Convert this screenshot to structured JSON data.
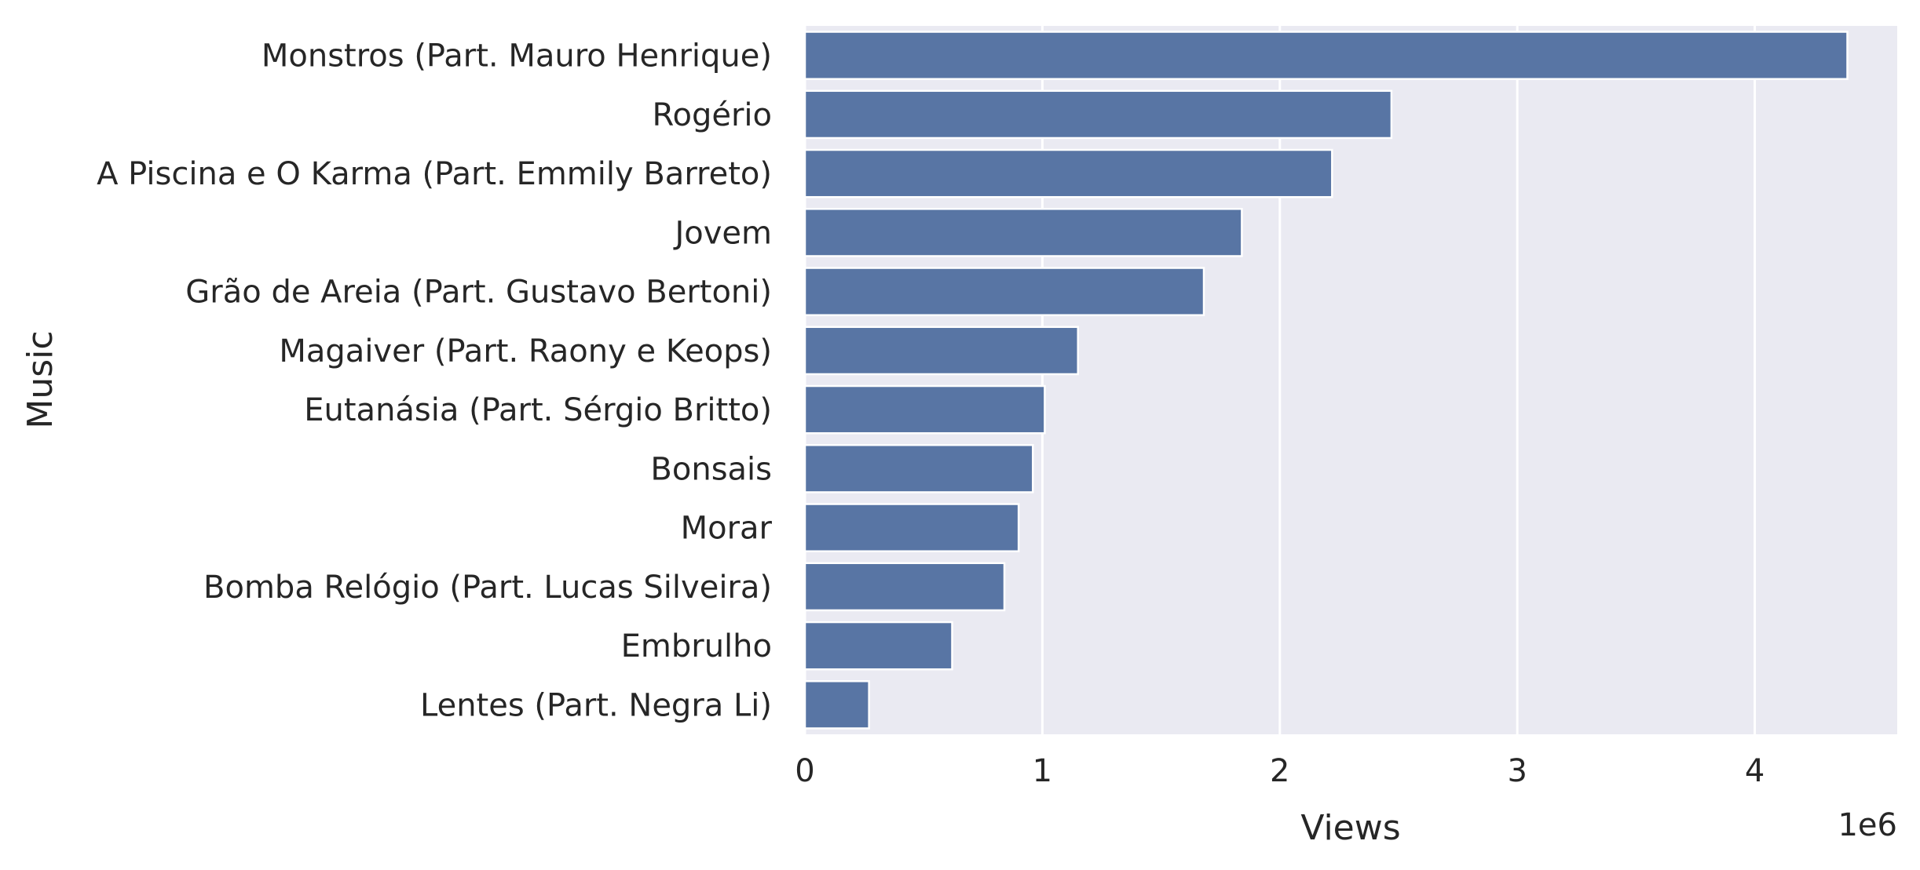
{
  "chart_data": {
    "type": "bar",
    "orientation": "horizontal",
    "title": "",
    "xlabel": "Views",
    "ylabel": "Music",
    "x_offset_label": "1e6",
    "xlim": [
      0,
      4.6
    ],
    "x_ticks": [
      0,
      1,
      2,
      3,
      4
    ],
    "grid": true,
    "bar_color": "#5875a4",
    "background_color": "#eaeaf2",
    "categories": [
      "Monstros (Part. Mauro Henrique)",
      "Rogério",
      "A Piscina e O Karma (Part. Emmily Barreto)",
      "Jovem",
      "Grão de Areia (Part. Gustavo Bertoni)",
      "Magaiver (Part. Raony e Keops)",
      "Eutanásia (Part. Sérgio Britto)",
      "Bonsais",
      "Morar",
      "Bomba Relógio (Part. Lucas Silveira)",
      "Embrulho",
      "Lentes (Part. Negra Li)"
    ],
    "values": [
      4.39,
      2.47,
      2.22,
      1.84,
      1.68,
      1.15,
      1.01,
      0.96,
      0.9,
      0.84,
      0.62,
      0.27
    ],
    "values_scale": 1000000
  }
}
